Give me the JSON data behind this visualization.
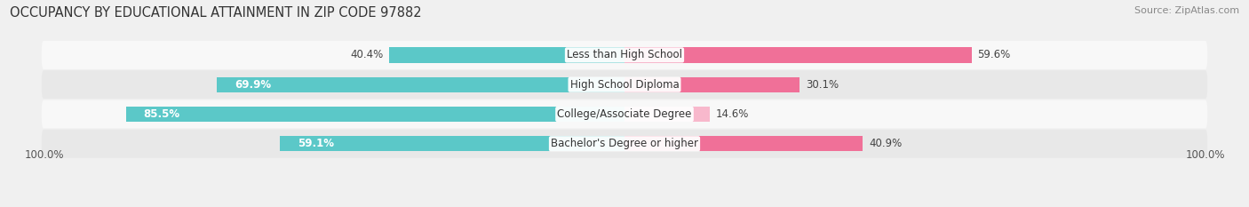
{
  "title": "OCCUPANCY BY EDUCATIONAL ATTAINMENT IN ZIP CODE 97882",
  "source": "Source: ZipAtlas.com",
  "categories": [
    "Less than High School",
    "High School Diploma",
    "College/Associate Degree",
    "Bachelor's Degree or higher"
  ],
  "owner_pct": [
    40.4,
    69.9,
    85.5,
    59.1
  ],
  "renter_pct": [
    59.6,
    30.1,
    14.6,
    40.9
  ],
  "owner_color": "#5bc8c8",
  "renter_color": "#f07098",
  "renter_color_light": "#f8b8cc",
  "bar_height": 0.52,
  "background_color": "#f0f0f0",
  "row_bg_even": "#f8f8f8",
  "row_bg_odd": "#e8e8e8",
  "axis_label": "100.0%",
  "title_fontsize": 10.5,
  "label_fontsize": 8.5,
  "source_fontsize": 8,
  "cat_label_fontsize": 8.5
}
